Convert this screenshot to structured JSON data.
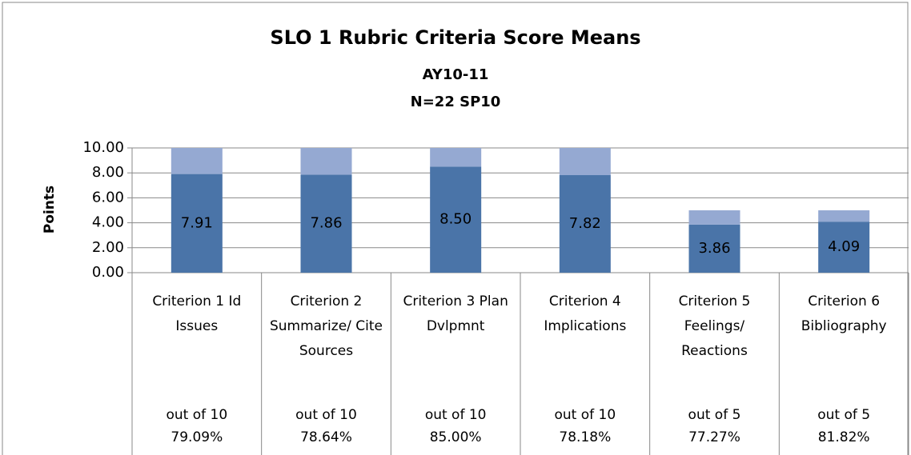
{
  "chart_data": {
    "type": "stacked_bar",
    "title": "SLO 1 Rubric Criteria Score Means",
    "subtitle": [
      "AY10-11",
      "N=22 SP10"
    ],
    "y_label": "Points",
    "categories": [
      "Criterion 1 Id Issues",
      "Criterion 2 Summarize/ Cite Sources",
      "Criterion 3 Plan Dvlpmnt",
      "Criterion 4 Implications",
      "Criterion 5 Feelings/ Reactions",
      "Criterion 6 Bibliography"
    ],
    "max_labels": [
      "out of 10",
      "out of 10",
      "out of 10",
      "out of 10",
      "out of 5",
      "out of 5"
    ],
    "percent_labels": [
      "79.09%",
      "78.64%",
      "85.00%",
      "78.18%",
      "77.27%",
      "81.82%"
    ],
    "series": [
      {
        "color": "#4a74a8",
        "values": [
          7.91,
          7.86,
          8.5,
          7.82,
          3.86,
          4.09
        ],
        "value_labels": [
          "7.91",
          "7.86",
          "8.50",
          "7.82",
          "3.86",
          "4.09"
        ]
      },
      {
        "color": "#95a9d2",
        "values": [
          2.09,
          2.14,
          1.5,
          2.18,
          1.14,
          0.91
        ]
      }
    ],
    "ylim": [
      0,
      10
    ],
    "yticks": [
      {
        "value": 0,
        "label": "0.00"
      },
      {
        "value": 2,
        "label": "2.00"
      },
      {
        "value": 4,
        "label": "4.00"
      },
      {
        "value": 6,
        "label": "6.00"
      },
      {
        "value": 8,
        "label": "8.00"
      },
      {
        "value": 10,
        "label": "10.00"
      }
    ],
    "grid": true
  }
}
